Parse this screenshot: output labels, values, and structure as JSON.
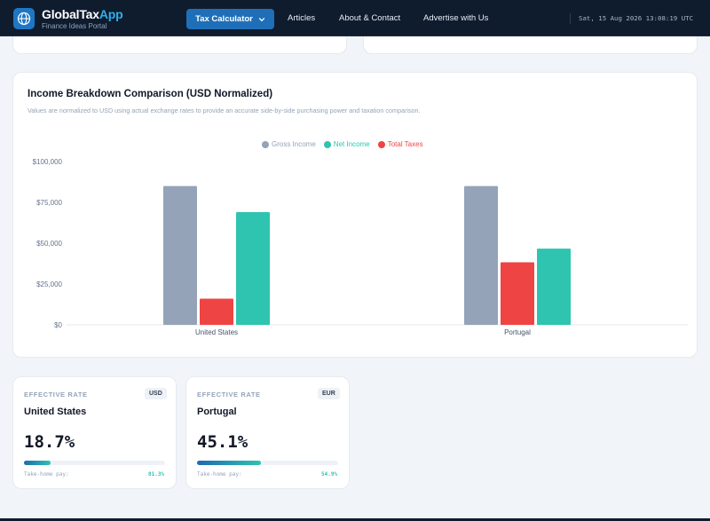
{
  "header": {
    "brand_main": "GlobalTax",
    "brand_accent": "App",
    "brand_sub": "Finance Ideas Portal",
    "nav_active": "Tax Calculator",
    "nav_links": [
      "Articles",
      "About & Contact",
      "Advertise with Us"
    ],
    "clock": "Sat, 15 Aug 2026 13:08:19 UTC",
    "icons": {
      "logo": "globe-icon",
      "dropdown": "chevron-down-icon"
    }
  },
  "chart": {
    "title": "Income Breakdown Comparison (USD Normalized)",
    "subtitle": "Values are normalized to USD using actual exchange rates to provide an accurate side-by-side purchasing power and taxation comparison."
  },
  "chart_data": {
    "type": "bar",
    "categories": [
      "United States",
      "Portugal"
    ],
    "series": [
      {
        "name": "Gross Income",
        "values": [
          85000,
          85000
        ],
        "color": "#94a3b8"
      },
      {
        "name": "Total Taxes",
        "values": [
          16000,
          38300
        ],
        "color": "#ef4444"
      },
      {
        "name": "Net Income",
        "values": [
          69000,
          46700
        ],
        "color": "#2ec4b0"
      }
    ],
    "legend_order": [
      "Gross Income",
      "Net Income",
      "Total Taxes"
    ],
    "y_ticks": [
      "$100,000",
      "$75,000",
      "$50,000",
      "$25,000",
      "$0"
    ],
    "ylim": [
      0,
      100000
    ],
    "legend_position": "top-center",
    "grid": false
  },
  "rates": [
    {
      "label": "EFFECTIVE RATE",
      "currency": "USD",
      "country": "United States",
      "rate": "18.7%",
      "rate_value": 18.7,
      "takehome_label": "Take-home pay:",
      "takehome": "81.3%"
    },
    {
      "label": "EFFECTIVE RATE",
      "currency": "EUR",
      "country": "Portugal",
      "rate": "45.1%",
      "rate_value": 45.1,
      "takehome_label": "Take-home pay:",
      "takehome": "54.9%"
    }
  ]
}
